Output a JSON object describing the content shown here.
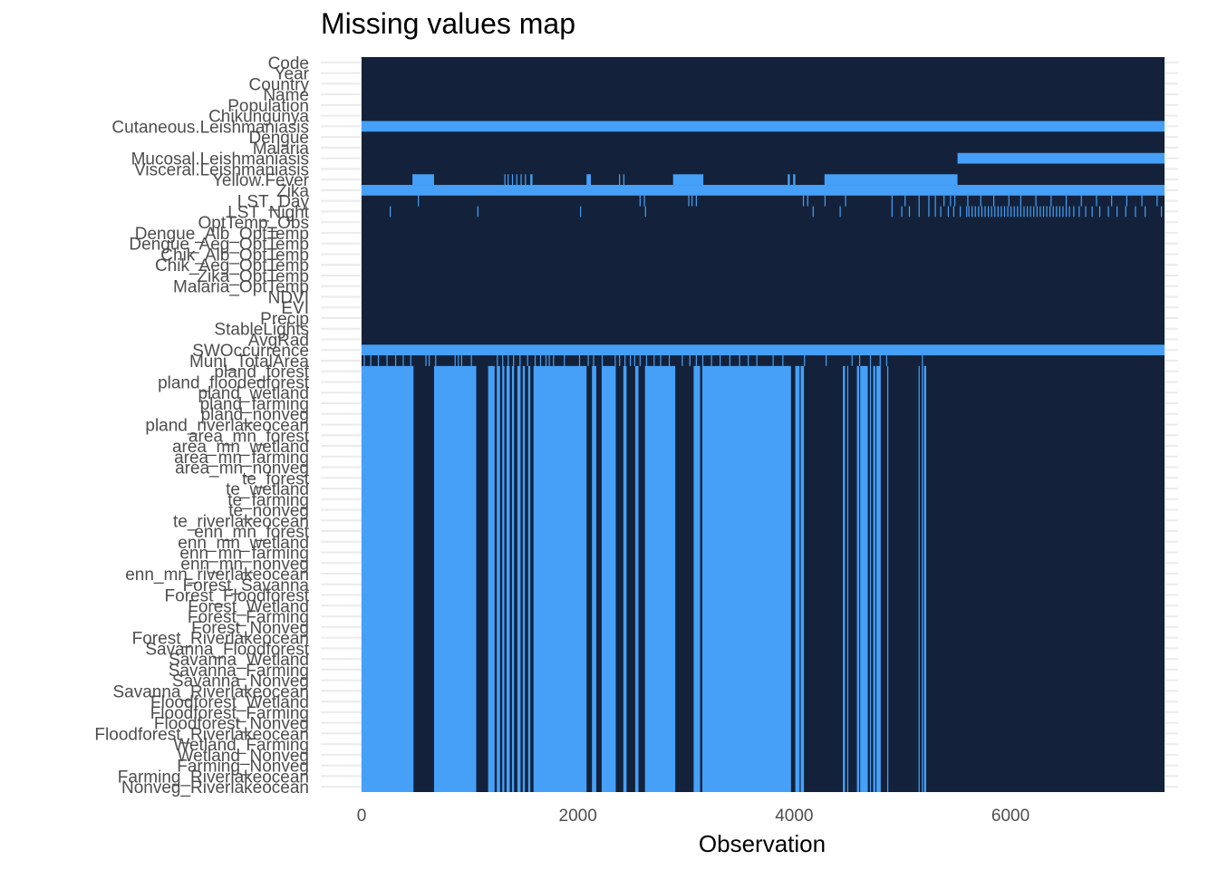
{
  "chart_data": {
    "type": "heatmap",
    "title": "Missing values map",
    "xlabel": "Observation",
    "ylabel": "",
    "xlim": [
      0,
      7424
    ],
    "x_ticks": [
      0,
      2000,
      4000,
      6000
    ],
    "grid": "horizontal gridlines at each variable, subtle gray",
    "legend": "none",
    "colors": {
      "observed": "#13223a",
      "missing": "#46a0f8",
      "grid": "#ebebeb"
    },
    "variables": [
      "Code",
      "Year",
      "Country",
      "Name",
      "Population",
      "Chikungunya",
      "Cutaneous.Leishmaniasis",
      "Dengue",
      "Malaria",
      "Mucosal.Leishmaniasis",
      "Visceral.Leishmaniasis",
      "Yellow.Fever",
      "Zika",
      "LST_Day",
      "LST_Night",
      "OptTemp_Obs",
      "Dengue_Alb_OptTemp",
      "Dengue_Aeg_OptTemp",
      "Chik_Alb_OptTemp",
      "Chik_Aeg_OptTemp",
      "Zika_OptTemp",
      "Malaria_OptTemp",
      "NDVI",
      "EVI",
      "Precip",
      "StableLights",
      "AvgRad",
      "SWOccurrence",
      "Muni_TotalArea",
      "pland_forest",
      "pland_floodedforest",
      "pland_wetland",
      "pland_farming",
      "pland_nonveg",
      "pland_riverlakeocean",
      "area_mn_forest",
      "area_mn_wetland",
      "area_mn_farming",
      "area_mn_nonveg",
      "te_forest",
      "te_wetland",
      "te_farming",
      "te_nonveg",
      "te_riverlakeocean",
      "enn_mn_forest",
      "enn_mn_wetland",
      "enn_mn_farming",
      "enn_mn_nonveg",
      "enn_mn_riverlakeocean",
      "Forest_Savanna",
      "Forest_Floodforest",
      "Forest_Wetland",
      "Forest_Farming",
      "Forest_Nonveg",
      "Forest_Riverlakeocean",
      "Savanna_Floodforest",
      "Savanna_Wetland",
      "Savanna_Farming",
      "Savanna_Nonveg",
      "Savanna_Riverlakeocean",
      "Floodforest_Wetland",
      "Floodforest_Farming",
      "Floodforest_Nonveg",
      "Floodforest_Riverlakeocean",
      "Wetland_Farming",
      "Wetland_Nonveg",
      "Farming_Nonveg",
      "Farming_Riverlakeocean",
      "Nonveg_Riverlakeocean"
    ],
    "missing_segments": [
      {
        "rows": [
          "Cutaneous.Leishmaniasis"
        ],
        "x": [
          [
            0,
            7424
          ]
        ]
      },
      {
        "rows": [
          "Mucosal.Leishmaniasis"
        ],
        "x": [
          [
            5510,
            7424
          ]
        ]
      },
      {
        "rows": [
          "Yellow.Fever"
        ],
        "x": [
          [
            470,
            670
          ],
          [
            1320,
            1330
          ],
          [
            1350,
            1360
          ],
          [
            1390,
            1400
          ],
          [
            1430,
            1440
          ],
          [
            1470,
            1480
          ],
          [
            1510,
            1520
          ],
          [
            1560,
            1580
          ],
          [
            2080,
            2120
          ],
          [
            2380,
            2390
          ],
          [
            2420,
            2430
          ],
          [
            2880,
            3160
          ],
          [
            3940,
            3960
          ],
          [
            3990,
            4010
          ],
          [
            4280,
            5510
          ]
        ]
      },
      {
        "rows": [
          "Zika"
        ],
        "x": [
          [
            0,
            7424
          ]
        ]
      },
      {
        "rows": [
          "LST_Day"
        ],
        "x": [
          [
            520,
            530
          ],
          [
            2570,
            2580
          ],
          [
            2610,
            2620
          ],
          [
            3020,
            3030
          ],
          [
            3050,
            3060
          ],
          [
            3090,
            3100
          ],
          [
            4080,
            4090
          ],
          [
            4120,
            4130
          ],
          [
            4280,
            4290
          ],
          [
            4470,
            4480
          ],
          [
            4900,
            4910
          ],
          [
            5020,
            5030
          ],
          [
            5150,
            5160
          ],
          [
            5240,
            5250
          ],
          [
            5300,
            5310
          ],
          [
            5380,
            5390
          ],
          [
            5440,
            5450
          ],
          [
            5480,
            5490
          ],
          [
            5600,
            5610
          ],
          [
            5720,
            5730
          ],
          [
            5840,
            5850
          ],
          [
            5980,
            5990
          ],
          [
            6090,
            6100
          ],
          [
            6230,
            6240
          ],
          [
            6370,
            6380
          ],
          [
            6510,
            6520
          ],
          [
            6650,
            6660
          ],
          [
            6790,
            6800
          ],
          [
            6930,
            6940
          ],
          [
            7070,
            7080
          ],
          [
            7210,
            7220
          ],
          [
            7350,
            7360
          ]
        ]
      },
      {
        "rows": [
          "LST_Night"
        ],
        "x": [
          [
            260,
            270
          ],
          [
            1070,
            1080
          ],
          [
            2020,
            2030
          ],
          [
            2620,
            2630
          ],
          [
            4170,
            4180
          ],
          [
            4420,
            4430
          ],
          [
            4900,
            4910
          ],
          [
            4990,
            5000
          ],
          [
            5060,
            5070
          ],
          [
            5150,
            5160
          ],
          [
            5240,
            5250
          ],
          [
            5300,
            5310
          ],
          [
            5350,
            5360
          ],
          [
            5420,
            5430
          ],
          [
            5470,
            5480
          ],
          [
            5530,
            5540
          ],
          [
            5590,
            5600
          ],
          [
            5610,
            5620
          ],
          [
            5640,
            5650
          ],
          [
            5670,
            5680
          ],
          [
            5700,
            5710
          ],
          [
            5730,
            5740
          ],
          [
            5760,
            5770
          ],
          [
            5790,
            5800
          ],
          [
            5820,
            5830
          ],
          [
            5850,
            5860
          ],
          [
            5880,
            5890
          ],
          [
            5910,
            5920
          ],
          [
            5940,
            5950
          ],
          [
            5970,
            5980
          ],
          [
            6000,
            6010
          ],
          [
            6030,
            6040
          ],
          [
            6060,
            6070
          ],
          [
            6090,
            6100
          ],
          [
            6120,
            6130
          ],
          [
            6150,
            6160
          ],
          [
            6180,
            6190
          ],
          [
            6210,
            6220
          ],
          [
            6240,
            6250
          ],
          [
            6270,
            6280
          ],
          [
            6300,
            6310
          ],
          [
            6330,
            6340
          ],
          [
            6360,
            6370
          ],
          [
            6390,
            6400
          ],
          [
            6420,
            6430
          ],
          [
            6450,
            6460
          ],
          [
            6480,
            6490
          ],
          [
            6510,
            6520
          ],
          [
            6540,
            6550
          ],
          [
            6580,
            6590
          ],
          [
            6630,
            6640
          ],
          [
            6690,
            6700
          ],
          [
            6750,
            6760
          ],
          [
            6820,
            6830
          ],
          [
            6900,
            6910
          ],
          [
            6980,
            6990
          ],
          [
            7060,
            7070
          ],
          [
            7150,
            7160
          ],
          [
            7240,
            7250
          ],
          [
            7390,
            7400
          ]
        ]
      },
      {
        "rows": [
          "SWOccurrence"
        ],
        "x": [
          [
            0,
            7424
          ]
        ]
      },
      {
        "rows": [
          "Muni_TotalArea"
        ],
        "x": [
          [
            20,
            30
          ],
          [
            80,
            90
          ],
          [
            150,
            160
          ],
          [
            230,
            240
          ],
          [
            310,
            320
          ],
          [
            380,
            390
          ],
          [
            450,
            460
          ],
          [
            590,
            600
          ],
          [
            620,
            630
          ],
          [
            680,
            690
          ],
          [
            860,
            870
          ],
          [
            890,
            900
          ],
          [
            920,
            930
          ],
          [
            1010,
            1020
          ],
          [
            1250,
            1260
          ],
          [
            1300,
            1310
          ],
          [
            1350,
            1360
          ],
          [
            1400,
            1410
          ],
          [
            1460,
            1470
          ],
          [
            1530,
            1540
          ],
          [
            1600,
            1610
          ],
          [
            1650,
            1660
          ],
          [
            1700,
            1710
          ],
          [
            1730,
            1740
          ],
          [
            1770,
            1780
          ],
          [
            1870,
            1880
          ],
          [
            2010,
            2020
          ],
          [
            2090,
            2100
          ],
          [
            2140,
            2150
          ],
          [
            2220,
            2230
          ],
          [
            2340,
            2350
          ],
          [
            2380,
            2390
          ],
          [
            2430,
            2440
          ],
          [
            2480,
            2490
          ],
          [
            2520,
            2530
          ],
          [
            2570,
            2580
          ],
          [
            2630,
            2640
          ],
          [
            2700,
            2710
          ],
          [
            2760,
            2770
          ],
          [
            2840,
            2850
          ],
          [
            2960,
            2970
          ],
          [
            3030,
            3040
          ],
          [
            3090,
            3100
          ],
          [
            3150,
            3160
          ],
          [
            3230,
            3240
          ],
          [
            3310,
            3320
          ],
          [
            3400,
            3410
          ],
          [
            3490,
            3500
          ],
          [
            3570,
            3580
          ],
          [
            3650,
            3660
          ],
          [
            3800,
            3810
          ],
          [
            3890,
            3900
          ],
          [
            4090,
            4100
          ],
          [
            4290,
            4300
          ],
          [
            4530,
            4540
          ],
          [
            4600,
            4610
          ],
          [
            4700,
            4710
          ],
          [
            4790,
            4800
          ],
          [
            4850,
            4860
          ],
          [
            5180,
            5190
          ]
        ]
      },
      {
        "rows": [
          "pland_forest",
          "pland_floodedforest",
          "pland_wetland",
          "pland_farming",
          "pland_nonveg",
          "pland_riverlakeocean",
          "area_mn_forest",
          "area_mn_wetland",
          "area_mn_farming",
          "area_mn_nonveg",
          "te_forest",
          "te_wetland",
          "te_farming",
          "te_nonveg",
          "te_riverlakeocean",
          "enn_mn_forest",
          "enn_mn_wetland",
          "enn_mn_farming",
          "enn_mn_nonveg",
          "enn_mn_riverlakeocean",
          "Forest_Savanna",
          "Forest_Floodforest",
          "Forest_Wetland",
          "Forest_Farming",
          "Forest_Nonveg",
          "Forest_Riverlakeocean",
          "Savanna_Floodforest",
          "Savanna_Wetland",
          "Savanna_Farming",
          "Savanna_Nonveg",
          "Savanna_Riverlakeocean",
          "Floodforest_Wetland",
          "Floodforest_Farming",
          "Floodforest_Nonveg",
          "Floodforest_Riverlakeocean",
          "Wetland_Farming",
          "Wetland_Nonveg",
          "Farming_Nonveg",
          "Farming_Riverlakeocean",
          "Nonveg_Riverlakeocean"
        ],
        "x": [
          [
            0,
            480
          ],
          [
            670,
            1060
          ],
          [
            1170,
            1230
          ],
          [
            1250,
            1280
          ],
          [
            1300,
            1320
          ],
          [
            1340,
            1370
          ],
          [
            1390,
            1410
          ],
          [
            1440,
            1470
          ],
          [
            1490,
            1510
          ],
          [
            1540,
            1560
          ],
          [
            1590,
            2080
          ],
          [
            2130,
            2170
          ],
          [
            2220,
            2350
          ],
          [
            2420,
            2450
          ],
          [
            2530,
            2560
          ],
          [
            2620,
            2900
          ],
          [
            3070,
            3130
          ],
          [
            3150,
            3970
          ],
          [
            4010,
            4050
          ],
          [
            4060,
            4090
          ],
          [
            4450,
            4470
          ],
          [
            4490,
            4500
          ],
          [
            4580,
            4600
          ],
          [
            4610,
            4680
          ],
          [
            4700,
            4710
          ],
          [
            4730,
            4750
          ],
          [
            4760,
            4800
          ],
          [
            4860,
            4870
          ],
          [
            5150,
            5160
          ],
          [
            5180,
            5190
          ],
          [
            5200,
            5220
          ]
        ]
      }
    ]
  }
}
